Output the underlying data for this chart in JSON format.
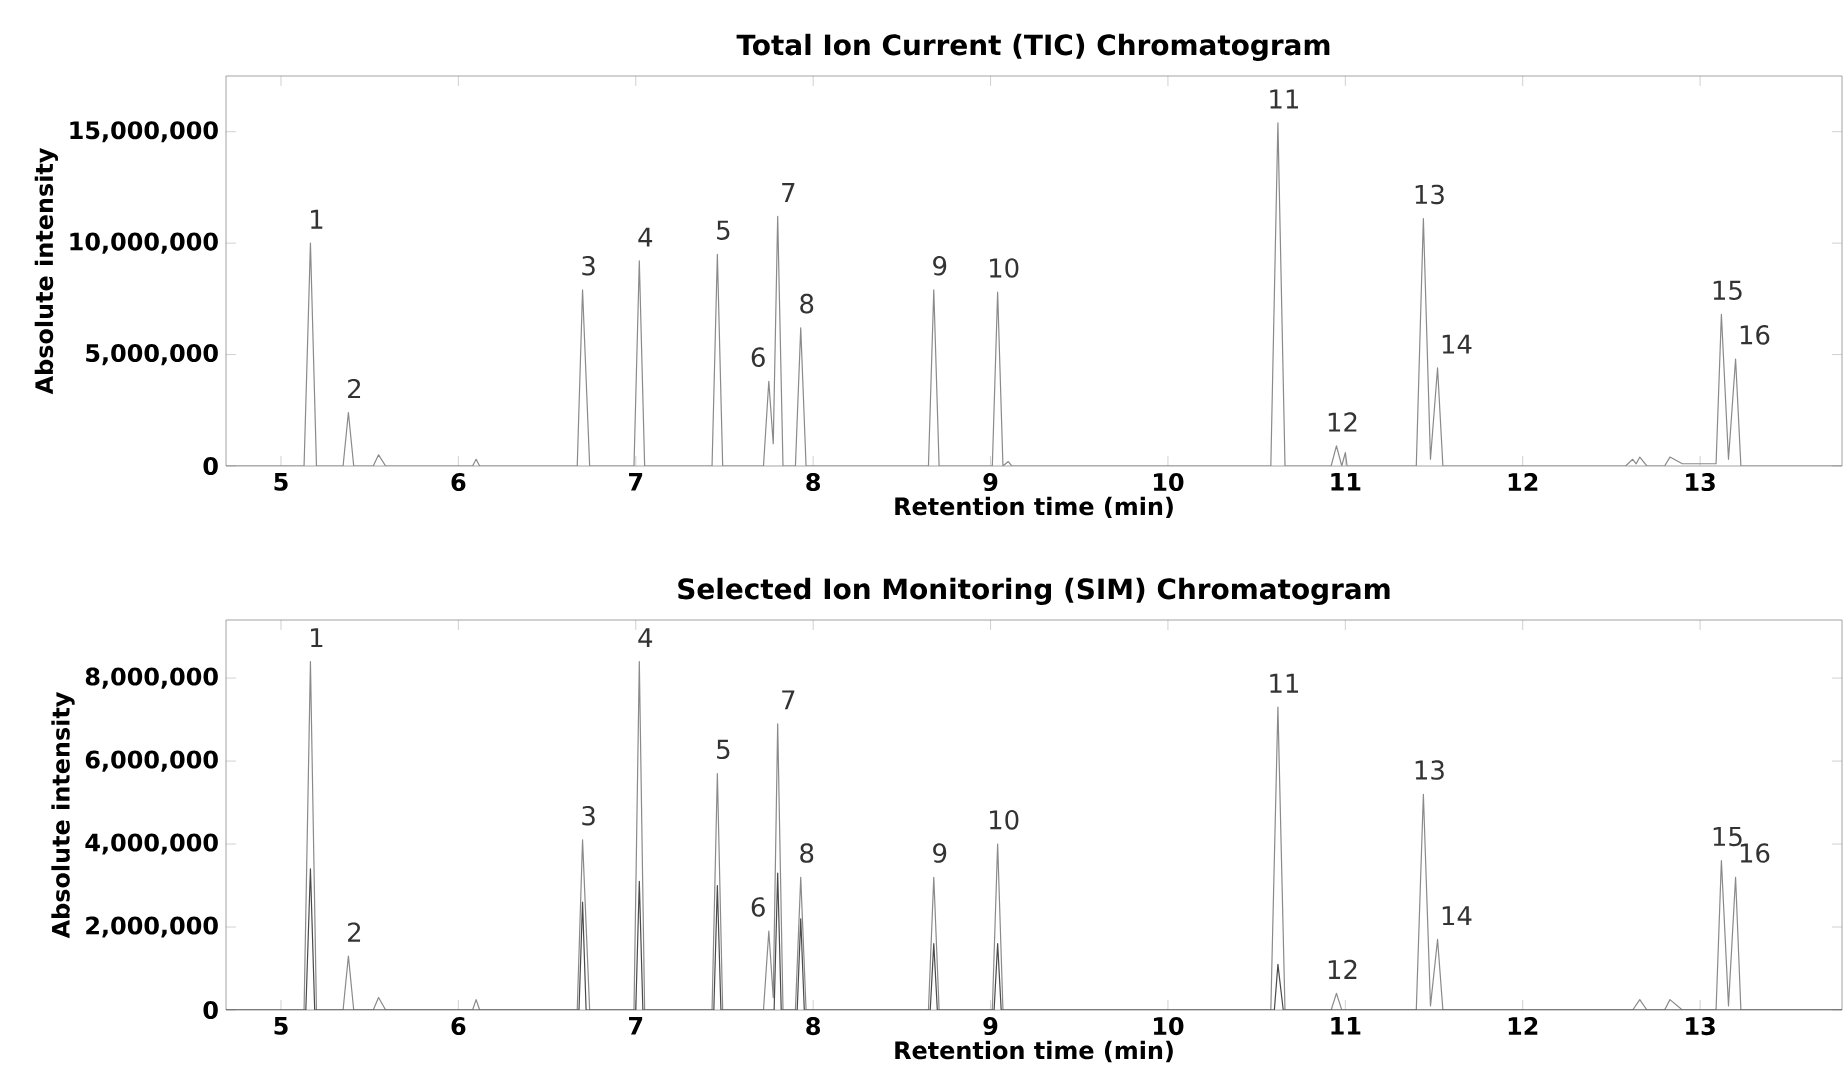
{
  "chart_data": [
    {
      "type": "line",
      "title": "Total Ion Current (TIC) Chromatogram",
      "xlabel": "Retention time (min)",
      "ylabel": "Absolute intensity",
      "xlim": [
        4.69,
        13.8
      ],
      "ylim": [
        0,
        17500000
      ],
      "xticks": [
        5,
        6,
        7,
        8,
        9,
        10,
        11,
        12,
        13
      ],
      "yticks": [
        0,
        {
          "value": 5000000,
          "label": "5,000,000"
        },
        {
          "value": 10000000,
          "label": "10,000,000"
        },
        {
          "value": 15000000,
          "label": "15,000,000"
        }
      ],
      "marker": "none",
      "series": [
        {
          "color": "#8a8a8a",
          "x": [
            4.69,
            5.13,
            5.166,
            5.2,
            5.35,
            5.38,
            5.41,
            5.52,
            5.55,
            5.59,
            6.08,
            6.1,
            6.12,
            6.67,
            6.7,
            6.74,
            6.99,
            7.02,
            7.05,
            7.43,
            7.46,
            7.49,
            7.72,
            7.75,
            7.775,
            7.8,
            7.83,
            7.9,
            7.93,
            7.96,
            8.65,
            8.68,
            8.71,
            9.01,
            9.04,
            9.07,
            9.1,
            9.12,
            10.58,
            10.62,
            10.66,
            10.92,
            10.95,
            10.98,
            11.0,
            11.01,
            11.4,
            11.44,
            11.48,
            11.52,
            11.55,
            12.58,
            12.62,
            12.64,
            12.66,
            12.7,
            12.8,
            12.83,
            12.9,
            13.09,
            13.12,
            13.16,
            13.2,
            13.23,
            13.8
          ],
          "values": [
            0,
            0,
            10000000,
            0,
            0,
            2400000,
            0,
            0,
            500000,
            0,
            0,
            300000,
            0,
            0,
            7900000,
            0,
            0,
            9200000,
            0,
            0,
            9500000,
            0,
            0,
            3800000,
            1000000,
            11200000,
            0,
            0,
            6200000,
            0,
            0,
            7900000,
            0,
            0,
            7800000,
            0,
            200000,
            0,
            0,
            15400000,
            0,
            0,
            900000,
            0,
            600000,
            0,
            0,
            11100000,
            300000,
            4400000,
            0,
            0,
            300000,
            100000,
            400000,
            0,
            0,
            400000,
            100000,
            100000,
            6800000,
            300000,
            4800000,
            0,
            0
          ]
        }
      ],
      "annotations": [
        {
          "text": "1",
          "x": 5.166,
          "y": 10000000
        },
        {
          "text": "2",
          "x": 5.38,
          "y": 2400000
        },
        {
          "text": "3",
          "x": 6.7,
          "y": 7900000
        },
        {
          "text": "4",
          "x": 7.02,
          "y": 9200000
        },
        {
          "text": "5",
          "x": 7.46,
          "y": 9500000
        },
        {
          "text": "6",
          "x": 7.75,
          "y": 3800000
        },
        {
          "text": "7",
          "x": 7.8,
          "y": 11200000
        },
        {
          "text": "8",
          "x": 7.93,
          "y": 6200000
        },
        {
          "text": "9",
          "x": 8.68,
          "y": 7900000
        },
        {
          "text": "10",
          "x": 9.04,
          "y": 7800000
        },
        {
          "text": "11",
          "x": 10.62,
          "y": 15400000
        },
        {
          "text": "12",
          "x": 10.95,
          "y": 900000
        },
        {
          "text": "13",
          "x": 11.44,
          "y": 11100000
        },
        {
          "text": "14",
          "x": 11.52,
          "y": 4400000
        },
        {
          "text": "15",
          "x": 13.12,
          "y": 6800000
        },
        {
          "text": "16",
          "x": 13.2,
          "y": 4800000
        }
      ]
    },
    {
      "type": "line",
      "title": "Selected Ion Monitoring (SIM) Chromatogram",
      "xlabel": "Retention time (min)",
      "ylabel": "Absolute intensity",
      "xlim": [
        4.69,
        13.8
      ],
      "ylim": [
        0,
        9400000
      ],
      "xticks": [
        5,
        6,
        7,
        8,
        9,
        10,
        11,
        12,
        13
      ],
      "yticks": [
        0,
        {
          "value": 2000000,
          "label": "2,000,000"
        },
        {
          "value": 4000000,
          "label": "4,000,000"
        },
        {
          "value": 6000000,
          "label": "6,000,000"
        },
        {
          "value": 8000000,
          "label": "8,000,000"
        }
      ],
      "marker": "none",
      "series": [
        {
          "color": "#8a8a8a",
          "x": [
            4.69,
            5.13,
            5.166,
            5.2,
            5.35,
            5.38,
            5.41,
            5.52,
            5.55,
            5.59,
            6.08,
            6.1,
            6.12,
            6.67,
            6.7,
            6.74,
            6.99,
            7.02,
            7.05,
            7.43,
            7.46,
            7.49,
            7.72,
            7.75,
            7.775,
            7.8,
            7.83,
            7.9,
            7.93,
            7.96,
            8.65,
            8.68,
            8.71,
            9.01,
            9.04,
            9.07,
            10.58,
            10.62,
            10.66,
            10.92,
            10.95,
            10.98,
            11.4,
            11.44,
            11.48,
            11.52,
            11.55,
            12.62,
            12.66,
            12.7,
            12.8,
            12.83,
            12.9,
            13.09,
            13.12,
            13.16,
            13.2,
            13.23,
            13.8
          ],
          "values": [
            0,
            0,
            8400000,
            0,
            0,
            1300000,
            0,
            0,
            300000,
            0,
            0,
            250000,
            0,
            0,
            4100000,
            0,
            0,
            8400000,
            0,
            0,
            5700000,
            0,
            0,
            1900000,
            300000,
            6900000,
            0,
            0,
            3200000,
            0,
            0,
            3200000,
            0,
            0,
            4000000,
            0,
            0,
            7300000,
            0,
            0,
            400000,
            0,
            0,
            5200000,
            100000,
            1700000,
            0,
            0,
            250000,
            0,
            0,
            250000,
            0,
            0,
            3600000,
            100000,
            3200000,
            0,
            0
          ]
        },
        {
          "color": "#4a4a4a",
          "x": [
            4.69,
            5.14,
            5.166,
            5.19,
            6.68,
            6.7,
            6.72,
            7.0,
            7.02,
            7.04,
            7.44,
            7.46,
            7.48,
            7.78,
            7.8,
            7.82,
            7.91,
            7.93,
            7.95,
            8.66,
            8.68,
            8.7,
            9.02,
            9.04,
            9.06,
            10.6,
            10.62,
            10.65,
            13.8
          ],
          "values": [
            0,
            0,
            3400000,
            0,
            0,
            2600000,
            0,
            0,
            3100000,
            0,
            0,
            3000000,
            0,
            0,
            3300000,
            0,
            0,
            2200000,
            0,
            0,
            1600000,
            0,
            0,
            1600000,
            0,
            0,
            1100000,
            0,
            0
          ]
        }
      ],
      "annotations": [
        {
          "text": "1",
          "x": 5.166,
          "y": 8400000
        },
        {
          "text": "2",
          "x": 5.38,
          "y": 1300000
        },
        {
          "text": "3",
          "x": 6.7,
          "y": 4100000
        },
        {
          "text": "4",
          "x": 7.02,
          "y": 8400000
        },
        {
          "text": "5",
          "x": 7.46,
          "y": 5700000
        },
        {
          "text": "6",
          "x": 7.75,
          "y": 1900000
        },
        {
          "text": "7",
          "x": 7.8,
          "y": 6900000
        },
        {
          "text": "8",
          "x": 7.93,
          "y": 3200000
        },
        {
          "text": "9",
          "x": 8.68,
          "y": 3200000
        },
        {
          "text": "10",
          "x": 9.04,
          "y": 4000000
        },
        {
          "text": "11",
          "x": 10.62,
          "y": 7300000
        },
        {
          "text": "12",
          "x": 10.95,
          "y": 400000
        },
        {
          "text": "13",
          "x": 11.44,
          "y": 5200000
        },
        {
          "text": "14",
          "x": 11.52,
          "y": 1700000
        },
        {
          "text": "15",
          "x": 13.12,
          "y": 3600000
        },
        {
          "text": "16",
          "x": 13.2,
          "y": 3200000
        }
      ]
    }
  ]
}
